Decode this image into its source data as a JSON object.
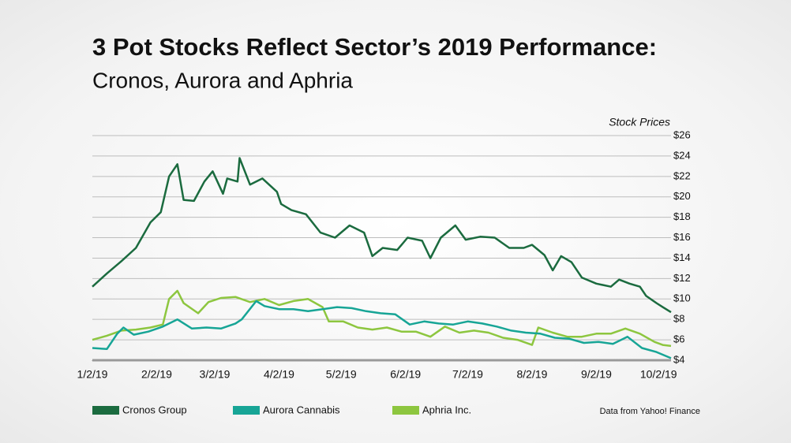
{
  "chart_data": {
    "type": "line",
    "title": "3 Pot Stocks Reflect Sector’s 2019 Performance:",
    "subtitle": "Cronos, Aurora and Aphria",
    "y_label": "Stock Prices",
    "source": "Data from Yahoo! Finance",
    "xlim": [
      "2019-01-02",
      "2019-10-08"
    ],
    "xticks": [
      {
        "value": "2019-01-02",
        "label": "1/2/19"
      },
      {
        "value": "2019-02-02",
        "label": "2/2/19"
      },
      {
        "value": "2019-03-02",
        "label": "3/2/19"
      },
      {
        "value": "2019-04-02",
        "label": "4/2/19"
      },
      {
        "value": "2019-05-02",
        "label": "5/2/19"
      },
      {
        "value": "2019-06-02",
        "label": "6/2/19"
      },
      {
        "value": "2019-07-02",
        "label": "7/2/19"
      },
      {
        "value": "2019-08-02",
        "label": "8/2/19"
      },
      {
        "value": "2019-09-02",
        "label": "9/2/19"
      },
      {
        "value": "2019-10-02",
        "label": "10/2/19"
      }
    ],
    "ylim": [
      4,
      26
    ],
    "yticks": [
      {
        "value": 4,
        "label": "$4"
      },
      {
        "value": 6,
        "label": "$6"
      },
      {
        "value": 8,
        "label": "$8"
      },
      {
        "value": 10,
        "label": "$10"
      },
      {
        "value": 12,
        "label": "$12"
      },
      {
        "value": 14,
        "label": "$14"
      },
      {
        "value": 16,
        "label": "$16"
      },
      {
        "value": 18,
        "label": "$18"
      },
      {
        "value": 20,
        "label": "$20"
      },
      {
        "value": 22,
        "label": "$22"
      },
      {
        "value": 24,
        "label": "$24"
      },
      {
        "value": 26,
        "label": "$26"
      }
    ],
    "grid": true,
    "legend": "bottom",
    "series": [
      {
        "name": "Cronos Group",
        "color": "#1b6b3f",
        "x": [
          "2019-01-02",
          "2019-01-09",
          "2019-01-16",
          "2019-01-23",
          "2019-01-30",
          "2019-02-04",
          "2019-02-08",
          "2019-02-12",
          "2019-02-15",
          "2019-02-20",
          "2019-02-25",
          "2019-03-01",
          "2019-03-06",
          "2019-03-08",
          "2019-03-13",
          "2019-03-14",
          "2019-03-19",
          "2019-03-25",
          "2019-04-01",
          "2019-04-03",
          "2019-04-08",
          "2019-04-15",
          "2019-04-22",
          "2019-04-29",
          "2019-05-06",
          "2019-05-13",
          "2019-05-17",
          "2019-05-22",
          "2019-05-29",
          "2019-06-03",
          "2019-06-10",
          "2019-06-14",
          "2019-06-19",
          "2019-06-26",
          "2019-07-01",
          "2019-07-08",
          "2019-07-15",
          "2019-07-22",
          "2019-07-29",
          "2019-08-02",
          "2019-08-08",
          "2019-08-12",
          "2019-08-16",
          "2019-08-21",
          "2019-08-26",
          "2019-09-02",
          "2019-09-09",
          "2019-09-13",
          "2019-09-18",
          "2019-09-23",
          "2019-09-26",
          "2019-10-01",
          "2019-10-04",
          "2019-10-08"
        ],
        "values": [
          11.2,
          12.5,
          13.7,
          15.0,
          17.5,
          18.5,
          22.0,
          23.2,
          19.7,
          19.6,
          21.5,
          22.5,
          20.3,
          21.8,
          21.5,
          23.8,
          21.2,
          21.8,
          20.5,
          19.3,
          18.7,
          18.3,
          16.5,
          16.0,
          17.2,
          16.5,
          14.2,
          15.0,
          14.8,
          16.0,
          15.7,
          14.0,
          16.0,
          17.2,
          15.8,
          16.1,
          16.0,
          15.0,
          15.0,
          15.3,
          14.3,
          12.8,
          14.2,
          13.6,
          12.1,
          11.5,
          11.2,
          11.9,
          11.5,
          11.2,
          10.3,
          9.6,
          9.2,
          8.7
        ]
      },
      {
        "name": "Aurora Cannabis",
        "color": "#17a596",
        "x": [
          "2019-01-02",
          "2019-01-09",
          "2019-01-14",
          "2019-01-17",
          "2019-01-22",
          "2019-01-29",
          "2019-02-05",
          "2019-02-12",
          "2019-02-19",
          "2019-02-26",
          "2019-03-05",
          "2019-03-12",
          "2019-03-15",
          "2019-03-22",
          "2019-03-26",
          "2019-04-02",
          "2019-04-09",
          "2019-04-16",
          "2019-04-23",
          "2019-04-30",
          "2019-05-07",
          "2019-05-14",
          "2019-05-21",
          "2019-05-28",
          "2019-06-04",
          "2019-06-11",
          "2019-06-18",
          "2019-06-25",
          "2019-07-02",
          "2019-07-09",
          "2019-07-16",
          "2019-07-23",
          "2019-07-30",
          "2019-08-06",
          "2019-08-13",
          "2019-08-20",
          "2019-08-27",
          "2019-09-03",
          "2019-09-10",
          "2019-09-17",
          "2019-09-24",
          "2019-10-01",
          "2019-10-08"
        ],
        "values": [
          5.2,
          5.1,
          6.6,
          7.2,
          6.5,
          6.8,
          7.3,
          8.0,
          7.1,
          7.2,
          7.1,
          7.6,
          8.0,
          9.8,
          9.3,
          9.0,
          9.0,
          8.8,
          9.0,
          9.2,
          9.1,
          8.8,
          8.6,
          8.5,
          7.5,
          7.8,
          7.6,
          7.5,
          7.8,
          7.6,
          7.3,
          6.9,
          6.7,
          6.6,
          6.2,
          6.1,
          5.7,
          5.8,
          5.6,
          6.3,
          5.2,
          4.8,
          4.2
        ]
      },
      {
        "name": "Aphria Inc.",
        "color": "#8dc63f",
        "x": [
          "2019-01-02",
          "2019-01-09",
          "2019-01-16",
          "2019-01-23",
          "2019-01-30",
          "2019-02-05",
          "2019-02-08",
          "2019-02-12",
          "2019-02-15",
          "2019-02-22",
          "2019-02-27",
          "2019-03-05",
          "2019-03-12",
          "2019-03-19",
          "2019-03-26",
          "2019-04-02",
          "2019-04-09",
          "2019-04-16",
          "2019-04-23",
          "2019-04-26",
          "2019-05-03",
          "2019-05-10",
          "2019-05-17",
          "2019-05-24",
          "2019-05-31",
          "2019-06-07",
          "2019-06-14",
          "2019-06-21",
          "2019-06-28",
          "2019-07-05",
          "2019-07-12",
          "2019-07-19",
          "2019-07-26",
          "2019-08-02",
          "2019-08-05",
          "2019-08-12",
          "2019-08-19",
          "2019-08-26",
          "2019-09-02",
          "2019-09-09",
          "2019-09-16",
          "2019-09-23",
          "2019-09-30",
          "2019-10-04",
          "2019-10-08"
        ],
        "values": [
          6.0,
          6.4,
          6.9,
          7.0,
          7.2,
          7.5,
          10.0,
          10.8,
          9.6,
          8.6,
          9.7,
          10.1,
          10.2,
          9.7,
          10.0,
          9.4,
          9.8,
          10.0,
          9.2,
          7.8,
          7.8,
          7.2,
          7.0,
          7.2,
          6.8,
          6.8,
          6.3,
          7.3,
          6.7,
          6.9,
          6.7,
          6.2,
          6.0,
          5.5,
          7.2,
          6.7,
          6.3,
          6.3,
          6.6,
          6.6,
          7.1,
          6.6,
          5.8,
          5.5,
          5.4
        ]
      }
    ]
  }
}
